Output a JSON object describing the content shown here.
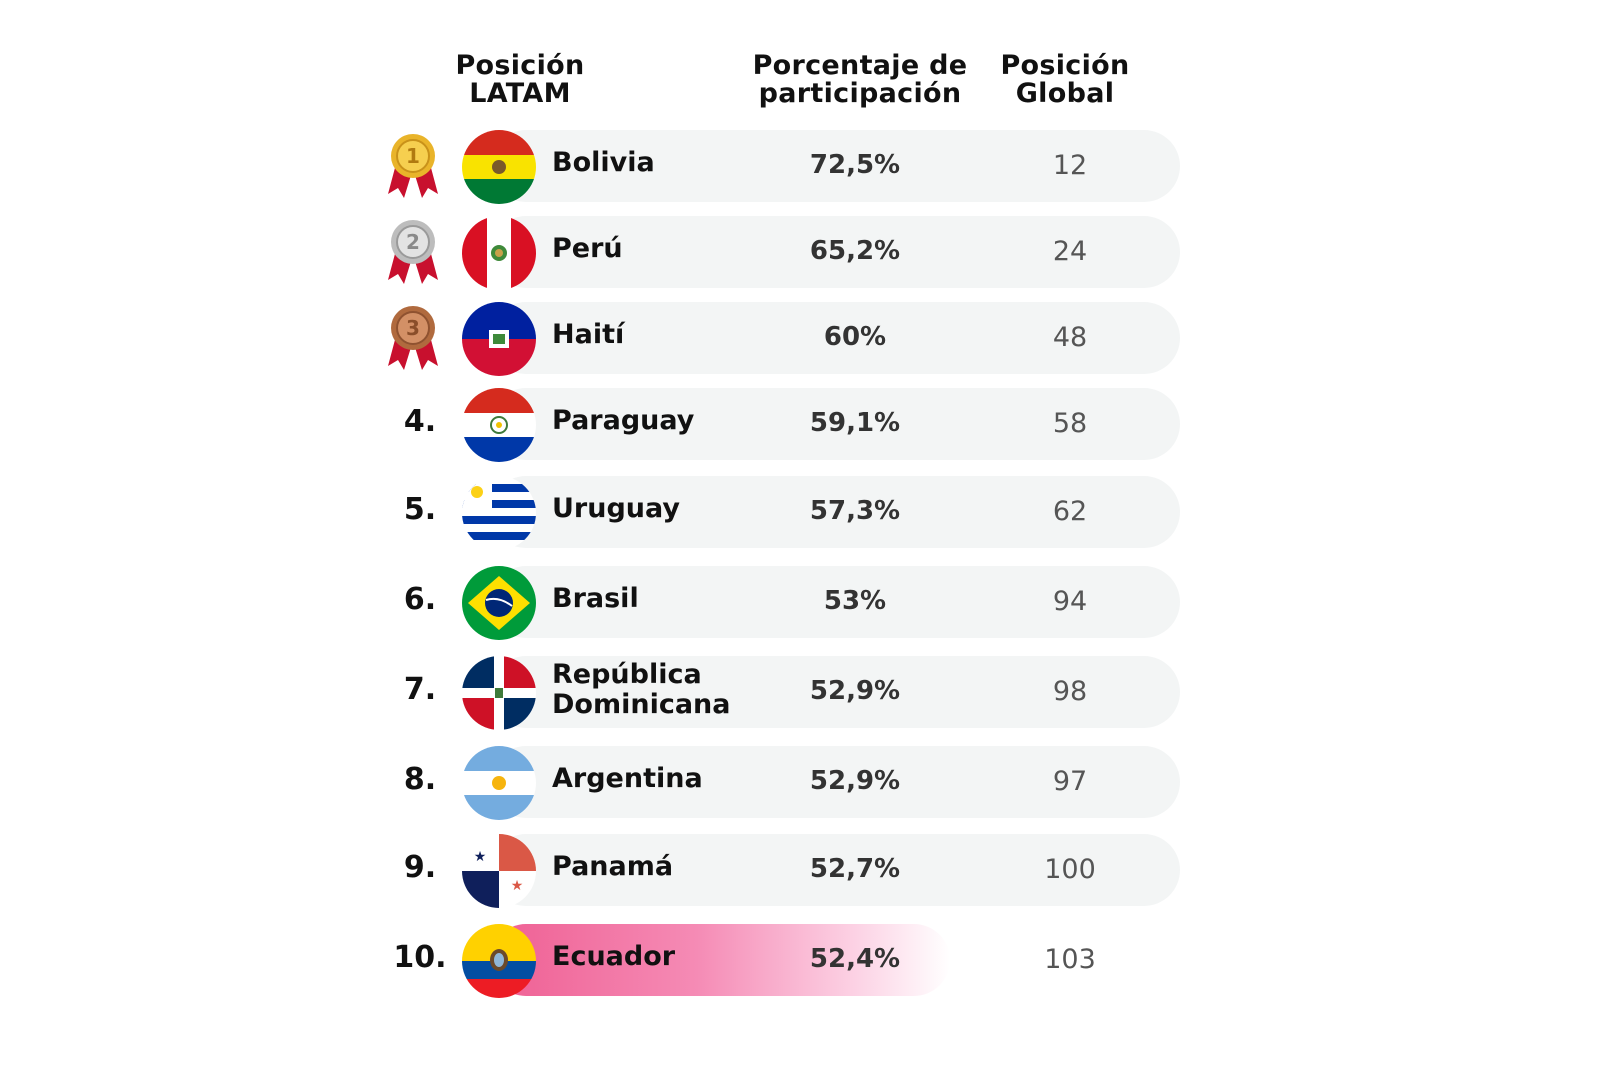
{
  "headers": {
    "latam_line1": "Posición",
    "latam_line2": "LATAM",
    "pct_line1": "Porcentaje de",
    "pct_line2": "participación",
    "global_line1": "Posición",
    "global_line2": "Global"
  },
  "rows": [
    {
      "rank": "",
      "medal": "1",
      "country": "Bolivia",
      "percent": "72,5%",
      "global": "12"
    },
    {
      "rank": "",
      "medal": "2",
      "country": "Perú",
      "percent": "65,2%",
      "global": "24"
    },
    {
      "rank": "",
      "medal": "3",
      "country": "Haití",
      "percent": "60%",
      "global": "48"
    },
    {
      "rank": "4.",
      "country": "Paraguay",
      "percent": "59,1%",
      "global": "58"
    },
    {
      "rank": "5.",
      "country": "Uruguay",
      "percent": "57,3%",
      "global": "62"
    },
    {
      "rank": "6.",
      "country": "Brasil",
      "percent": "53%",
      "global": "94"
    },
    {
      "rank": "7.",
      "country_line1": "República",
      "country_line2": "Dominicana",
      "percent": "52,9%",
      "global": "98"
    },
    {
      "rank": "8.",
      "country": "Argentina",
      "percent": "52,9%",
      "global": "97"
    },
    {
      "rank": "9.",
      "country": "Panamá",
      "percent": "52,7%",
      "global": "100"
    },
    {
      "rank": "10.",
      "country": "Ecuador",
      "percent": "52,4%",
      "global": "103"
    }
  ],
  "colors": {
    "row_background": "#f3f5f5",
    "highlight": "#ef5f93",
    "gold": "#e9b42a",
    "silver": "#c9c9c9",
    "bronze": "#c07a4d",
    "ribbon": "#c8102e"
  }
}
